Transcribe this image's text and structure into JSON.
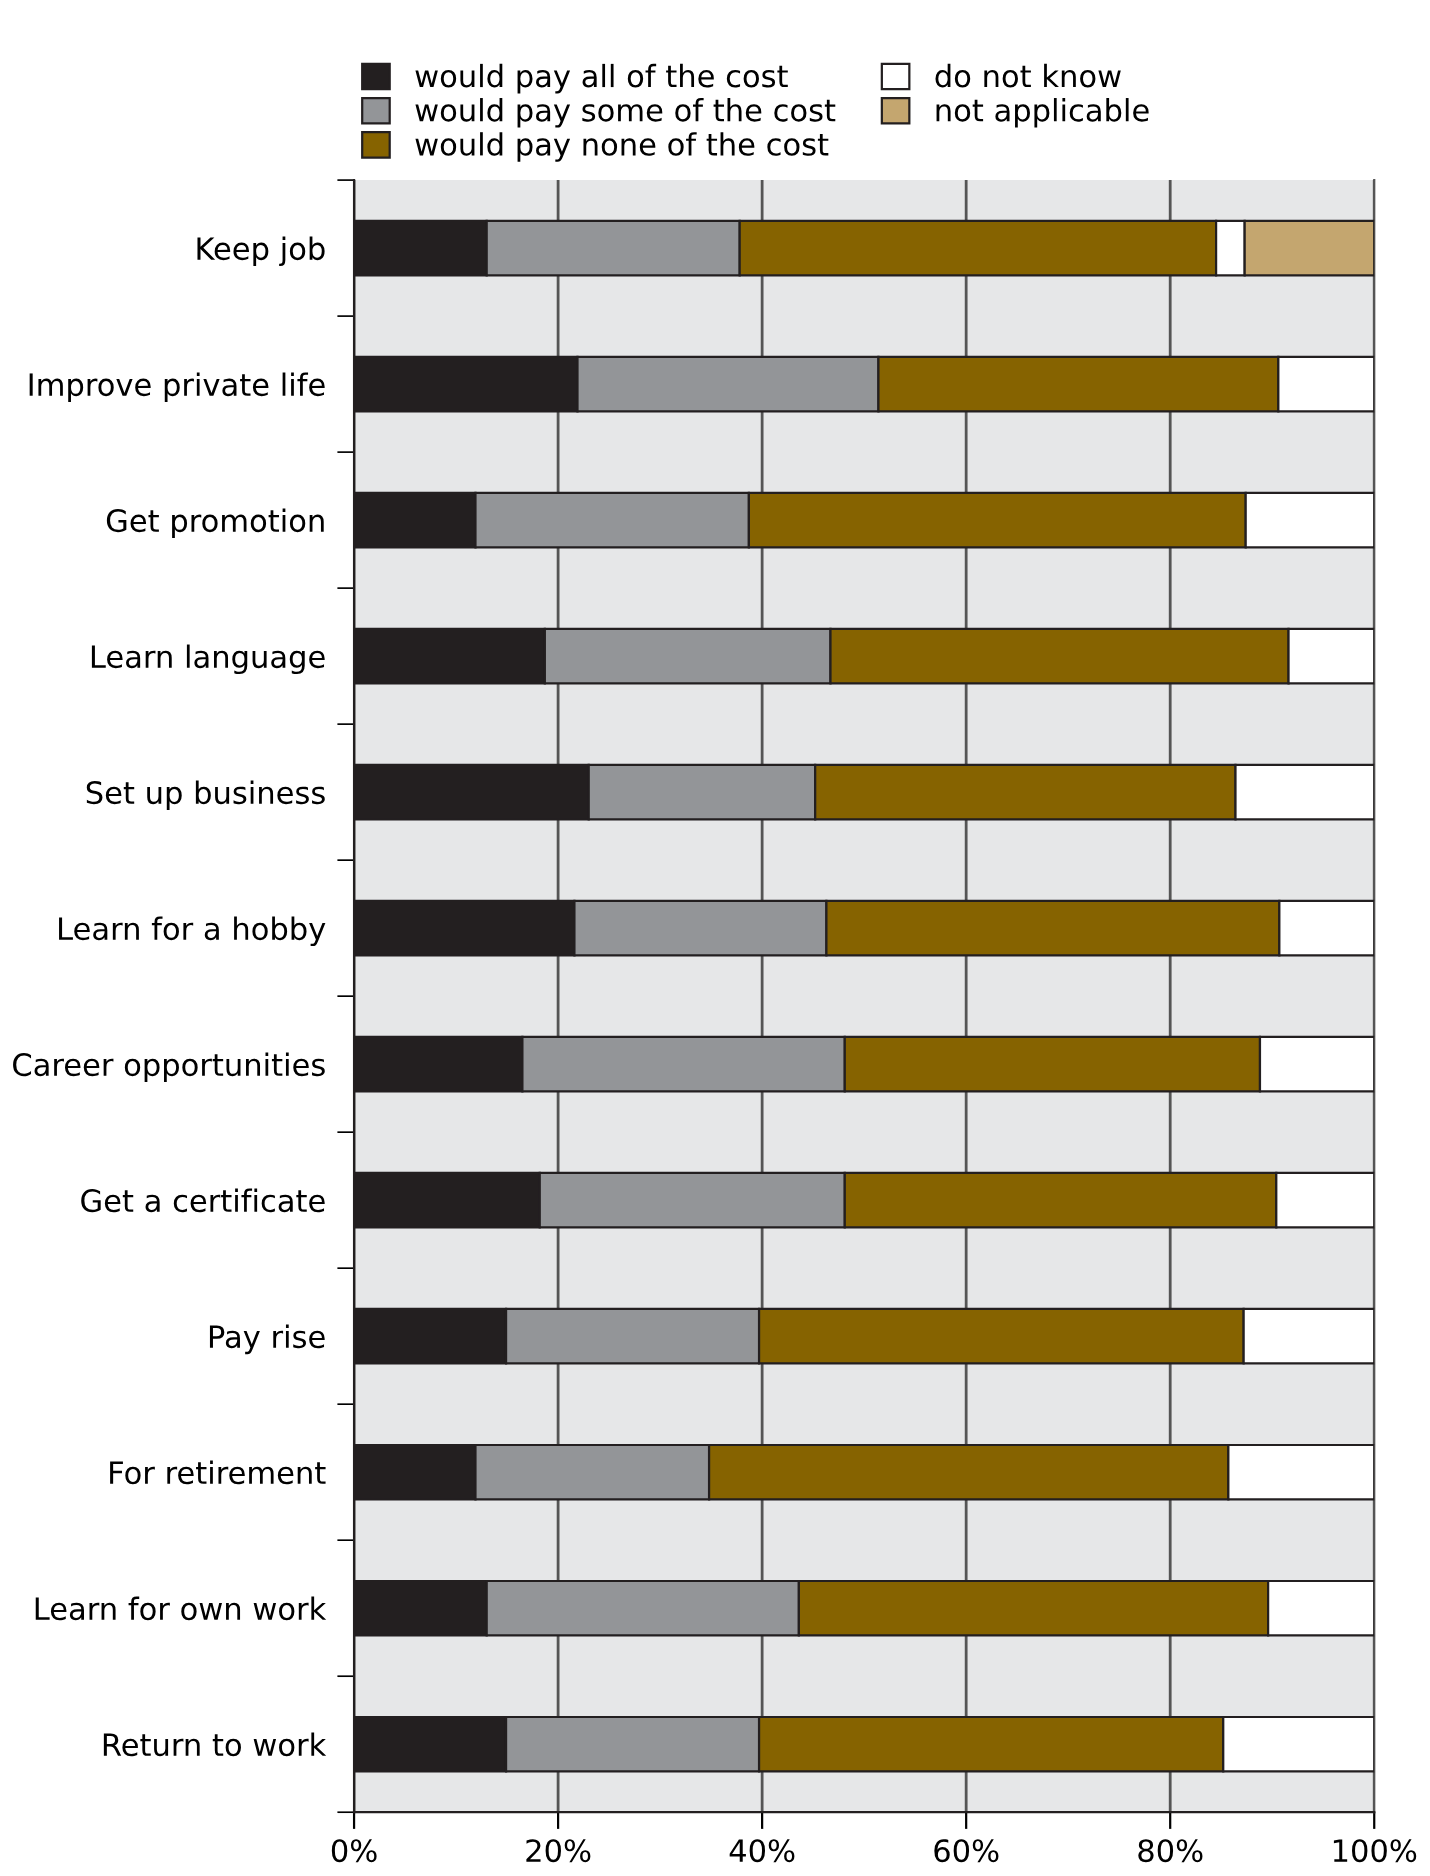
{
  "chart_data": {
    "type": "bar",
    "orientation": "horizontal",
    "stacked": true,
    "categories": [
      "Keep job",
      "Improve private life",
      "Get promotion",
      "Learn language",
      "Set up business",
      "Learn for a hobby",
      "Career opportunities",
      "Get a certificate",
      "Pay rise",
      "For retirement",
      "Learn for own work",
      "Return to work"
    ],
    "series": [
      {
        "name": "would pay all of the cost",
        "color": "#231f20",
        "values": [
          13.0,
          21.9,
          11.9,
          18.7,
          23.0,
          21.6,
          16.5,
          18.2,
          14.9,
          11.9,
          13.0,
          14.9
        ]
      },
      {
        "name": "would pay some of the cost",
        "color": "#939598",
        "values": [
          24.8,
          29.5,
          26.8,
          28.0,
          22.2,
          24.7,
          31.6,
          29.9,
          24.8,
          22.9,
          30.6,
          24.8
        ]
      },
      {
        "name": "would pay none of the cost",
        "color": "#866300",
        "values": [
          46.7,
          39.2,
          48.7,
          44.9,
          41.2,
          44.4,
          40.7,
          42.3,
          47.5,
          50.9,
          46.0,
          45.5
        ]
      },
      {
        "name": "do not know",
        "color": "#ffffff",
        "values": [
          2.8,
          9.4,
          12.6,
          8.4,
          13.6,
          9.3,
          11.2,
          9.6,
          12.8,
          14.3,
          10.4,
          14.8
        ]
      },
      {
        "name": "not applicable",
        "color": "#c4a66f",
        "values": [
          12.7,
          null,
          null,
          null,
          null,
          null,
          null,
          null,
          null,
          null,
          null,
          null
        ]
      }
    ],
    "xlim": [
      0,
      100
    ],
    "xticks": [
      {
        "value": 0,
        "label": "0%"
      },
      {
        "value": 20,
        "label": "20%"
      },
      {
        "value": 40,
        "label": "40%"
      },
      {
        "value": 60,
        "label": "60%"
      },
      {
        "value": 80,
        "label": "80%"
      },
      {
        "value": 100,
        "label": "100%"
      }
    ],
    "grid": "x",
    "legend": "top"
  }
}
